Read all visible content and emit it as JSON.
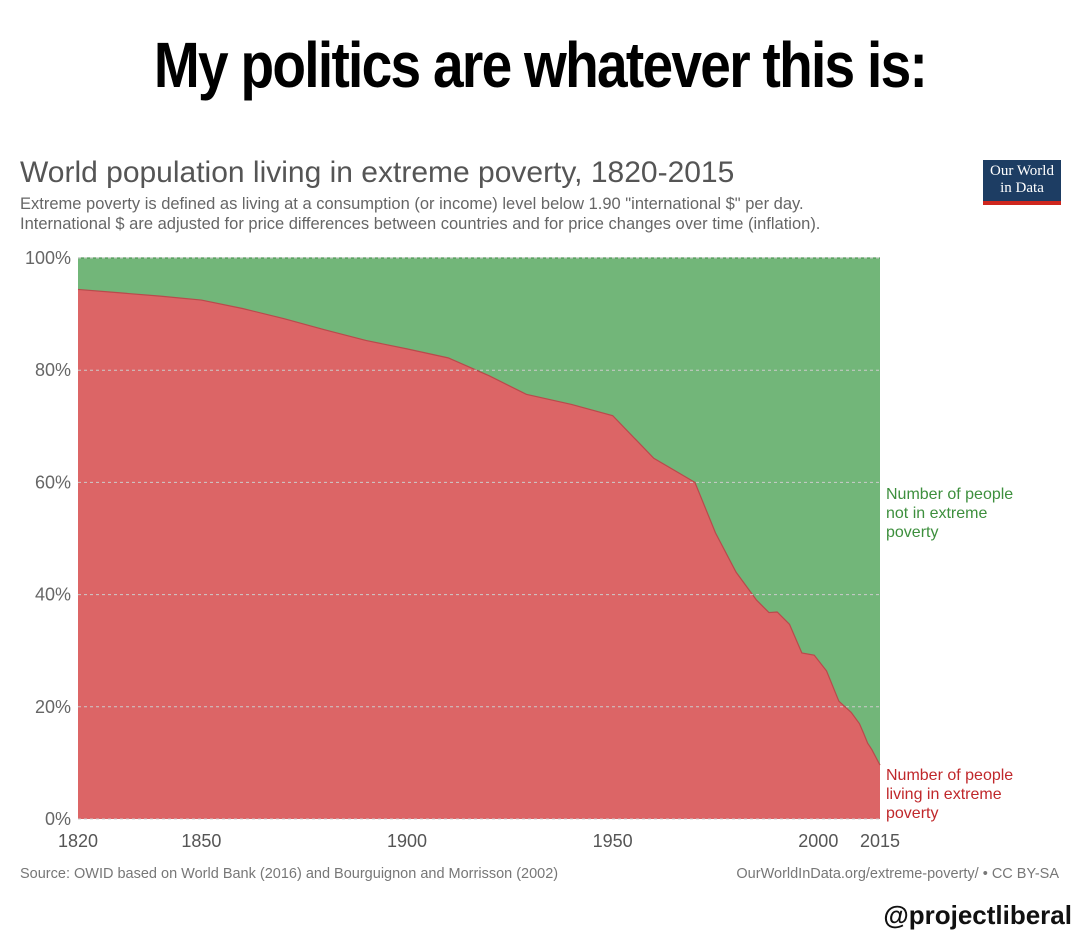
{
  "meme": {
    "title": "My politics are whatever this is:",
    "handle": "@projectliberal"
  },
  "logo": {
    "line1": "Our World",
    "line2": "in Data",
    "bg_color": "#1d3d63",
    "accent_color": "#ce261e"
  },
  "chart_data": {
    "type": "area",
    "stacked": true,
    "normalized": true,
    "title": "World population living in extreme poverty, 1820-2015",
    "subtitle_line1": "Extreme poverty is defined as living at a consumption (or income) level below 1.90 \"international $\" per day.",
    "subtitle_line2": "International $ are adjusted for price differences between countries and for price changes over time (inflation).",
    "xlim": [
      1820,
      2015
    ],
    "ylim": [
      0,
      100
    ],
    "x_ticks": [
      "1820",
      "1850",
      "1900",
      "1950",
      "2000",
      "2015"
    ],
    "y_ticks": [
      "0%",
      "20%",
      "40%",
      "60%",
      "80%",
      "100%"
    ],
    "grid": true,
    "x": [
      1820,
      1830,
      1840,
      1850,
      1860,
      1870,
      1880,
      1890,
      1900,
      1910,
      1920,
      1929,
      1940,
      1950,
      1960,
      1970,
      1975,
      1980,
      1985,
      1988,
      1990,
      1993,
      1996,
      1999,
      2002,
      2005,
      2008,
      2010,
      2011,
      2012,
      2013,
      2015
    ],
    "series": [
      {
        "name": "Number of people living in extreme poverty",
        "label_lines": [
          "Number of people",
          "living in extreme",
          "poverty"
        ],
        "color": "#dc6566",
        "values": [
          94.4,
          93.8,
          93.2,
          92.5,
          91.0,
          89.2,
          87.2,
          85.3,
          83.8,
          82.2,
          79.0,
          75.7,
          73.9,
          71.9,
          64.3,
          60.0,
          51.0,
          44.0,
          39.0,
          36.8,
          36.9,
          34.7,
          29.6,
          29.2,
          26.4,
          21.0,
          19.0,
          17.0,
          15.3,
          13.5,
          12.4,
          9.6
        ]
      },
      {
        "name": "Number of people not in extreme poverty",
        "label_lines": [
          "Number of people",
          "not in extreme",
          "poverty"
        ],
        "color": "#72b679",
        "values": [
          5.6,
          6.2,
          6.8,
          7.5,
          9.0,
          10.8,
          12.8,
          14.7,
          16.2,
          17.8,
          21.0,
          24.3,
          26.1,
          28.1,
          35.7,
          40.0,
          49.0,
          56.0,
          61.0,
          63.2,
          63.1,
          65.3,
          70.4,
          70.8,
          73.6,
          79.0,
          81.0,
          83.0,
          84.7,
          86.5,
          87.6,
          90.4
        ]
      }
    ],
    "source": "Source: OWID based on World Bank (2016) and Bourguignon and Morrisson (2002)",
    "license": "OurWorldInData.org/extreme-poverty/ • CC BY-SA"
  }
}
